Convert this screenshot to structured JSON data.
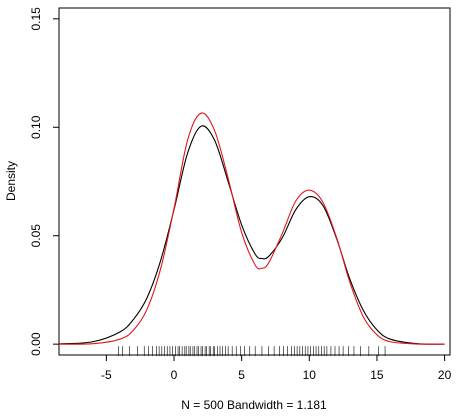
{
  "chart_data": {
    "type": "line",
    "title": "",
    "xlabel": "N = 500   Bandwidth = 1.181",
    "ylabel": "Density",
    "xlim": [
      -8.5,
      20.4
    ],
    "ylim": [
      -0.005,
      0.155
    ],
    "x_ticks": [
      -5,
      0,
      5,
      10,
      15,
      20
    ],
    "x_tick_labels": [
      "-5",
      "0",
      "5",
      "10",
      "15",
      "20"
    ],
    "y_ticks": [
      0.0,
      0.05,
      0.1,
      0.15
    ],
    "y_tick_labels": [
      "0.00",
      "0.05",
      "0.10",
      "0.15"
    ],
    "grid": false,
    "legend": "none",
    "series": [
      {
        "color": "#000000",
        "x": [
          -8.5,
          -6,
          -4,
          -3,
          -2,
          -1,
          0,
          1,
          2,
          3,
          4,
          5,
          6,
          6.5,
          7,
          8,
          9,
          10,
          11,
          12,
          13,
          14,
          15,
          16,
          18,
          20
        ],
        "y": [
          0.0001,
          0.0011,
          0.0056,
          0.0114,
          0.0213,
          0.0383,
          0.062,
          0.088,
          0.1005,
          0.094,
          0.075,
          0.055,
          0.0415,
          0.0395,
          0.0405,
          0.049,
          0.062,
          0.068,
          0.064,
          0.049,
          0.03,
          0.0155,
          0.0066,
          0.0023,
          0.0002,
          1e-05
        ]
      },
      {
        "color": "#e3171d",
        "x": [
          -8.5,
          -6,
          -4,
          -3,
          -2,
          -1,
          0,
          1,
          2,
          3,
          4,
          5,
          6,
          6.5,
          7,
          8,
          9,
          10,
          11,
          12,
          13,
          14,
          15,
          16,
          18,
          20
        ],
        "y": [
          0.0,
          0.0002,
          0.0023,
          0.0064,
          0.016,
          0.0345,
          0.0625,
          0.094,
          0.1065,
          0.0985,
          0.0765,
          0.0515,
          0.0365,
          0.035,
          0.0375,
          0.051,
          0.066,
          0.071,
          0.0655,
          0.0495,
          0.0285,
          0.0125,
          0.0043,
          0.0011,
          5e-05,
          0.0
        ]
      }
    ],
    "rug": [
      -4.1,
      -3.8,
      -3.3,
      -2.7,
      -2.2,
      -1.9,
      -1.6,
      -1.3,
      -1.1,
      -0.9,
      -0.7,
      -0.5,
      -0.3,
      -0.1,
      0.1,
      0.3,
      0.4,
      0.6,
      0.8,
      0.9,
      1.1,
      1.2,
      1.4,
      1.5,
      1.7,
      1.8,
      2.0,
      2.1,
      2.3,
      2.4,
      2.6,
      2.7,
      2.9,
      3.0,
      3.2,
      3.4,
      3.6,
      3.8,
      4.0,
      4.3,
      4.6,
      4.9,
      5.2,
      5.6,
      6.0,
      6.5,
      7.0,
      7.4,
      7.8,
      8.1,
      8.4,
      8.7,
      8.9,
      9.1,
      9.3,
      9.5,
      9.7,
      9.9,
      10.1,
      10.3,
      10.5,
      10.7,
      10.9,
      11.1,
      11.3,
      11.6,
      11.9,
      12.2,
      12.5,
      12.9,
      13.3,
      13.8,
      14.4,
      15.1,
      15.6
    ]
  }
}
